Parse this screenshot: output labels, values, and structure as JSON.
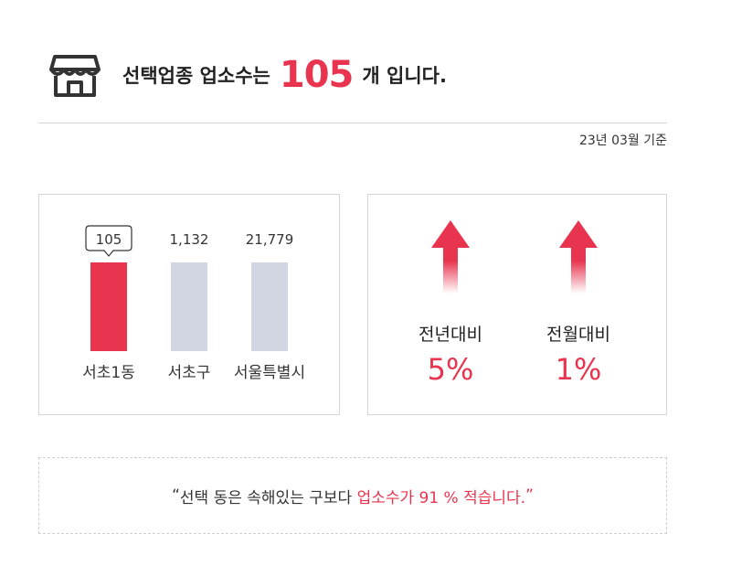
{
  "header": {
    "title_prefix": "선택업종 업소수는",
    "count": "105",
    "title_suffix": "개 입니다.",
    "basis_date": "23년 03월 기준",
    "icon": "store-icon"
  },
  "chart_data": {
    "type": "bar",
    "categories": [
      "서초1동",
      "서초구",
      "서울특별시"
    ],
    "values": [
      105,
      1132,
      21779
    ],
    "value_labels": [
      "105",
      "1,132",
      "21,779"
    ],
    "highlight_index": 0,
    "colors": {
      "highlight": "#e8344e",
      "other": "#d1d6e2"
    }
  },
  "change": {
    "items": [
      {
        "label": "전년대비",
        "value": "5%",
        "direction": "up"
      },
      {
        "label": "전월대비",
        "value": "1%",
        "direction": "up"
      }
    ]
  },
  "note": {
    "open_quote": "“",
    "text_plain": "선택 동은 속해있는 구보다 ",
    "text_highlight": "업소수가 91 % 적습니다.",
    "close_quote": "”"
  },
  "colors": {
    "accent": "#e8344e",
    "muted_bar": "#d1d6e2",
    "border": "#d6d6d6"
  }
}
